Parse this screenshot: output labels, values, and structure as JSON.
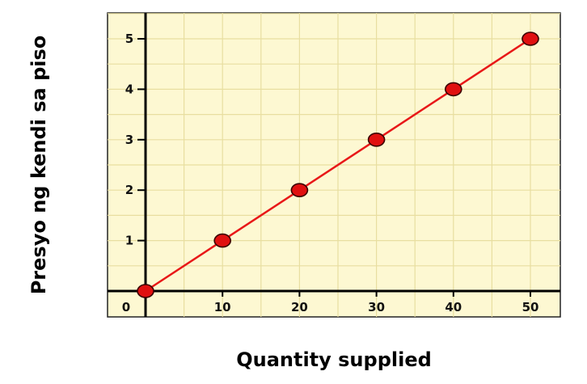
{
  "chart_data": {
    "type": "line",
    "xlabel": "Quantity supplied",
    "ylabel": "Presyo ng kendi sa piso",
    "x": [
      0,
      10,
      20,
      30,
      40,
      50
    ],
    "series": [
      {
        "values": [
          0,
          1,
          2,
          3,
          4,
          5
        ]
      }
    ],
    "x_ticks": [
      "0",
      "10",
      "20",
      "30",
      "40",
      "50"
    ],
    "y_ticks": [
      "1",
      "2",
      "3",
      "4",
      "5"
    ],
    "xlim": [
      0,
      55
    ],
    "ylim": [
      0,
      5.5
    ],
    "grid": true,
    "colors": {
      "plot_background": "#fdf8d2",
      "grid": "#e8dea0",
      "line": "#e81818",
      "marker_fill": "#e01010",
      "marker_stroke": "#3a0000"
    }
  }
}
